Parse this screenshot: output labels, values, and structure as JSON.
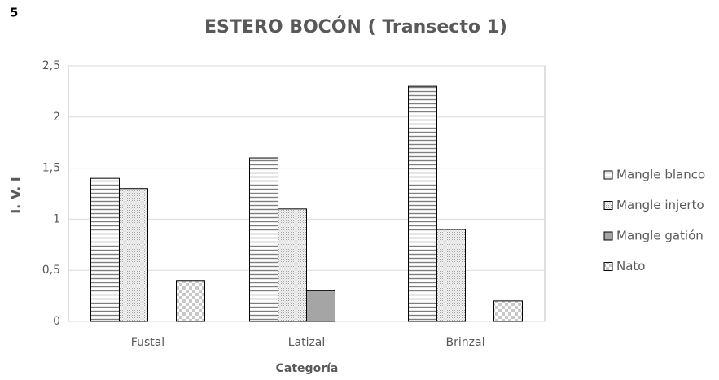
{
  "label": "5",
  "chart_data": {
    "type": "bar",
    "title": "ESTERO BOCÓN ( Transecto 1)",
    "x_label": "Categoría",
    "y_label": "I. V. I",
    "categories": [
      "Fustal",
      "Latizal",
      "Brinzal"
    ],
    "series": [
      {
        "name": "Mangle blanco",
        "color": "#7f7f7f",
        "values": [
          1.4,
          1.6,
          2.3
        ]
      },
      {
        "name": "Mangle injerto",
        "color": "#bfbfbf",
        "values": [
          1.3,
          1.1,
          0.9
        ]
      },
      {
        "name": "Mangle gatión",
        "color": "#a5a5a5",
        "values": [
          null,
          0.3,
          null
        ]
      },
      {
        "name": "Nato",
        "color": "#c8c8c8",
        "values": [
          0.4,
          null,
          0.2
        ]
      }
    ],
    "ylim": [
      0,
      2.5
    ],
    "yticks": [
      0,
      {
        "value": 0.5,
        "label": "0,5"
      },
      1,
      {
        "value": 1.5,
        "label": "1,5"
      },
      2,
      {
        "value": 2.5,
        "label": "2,5"
      }
    ],
    "grid": true,
    "legend": "right"
  }
}
